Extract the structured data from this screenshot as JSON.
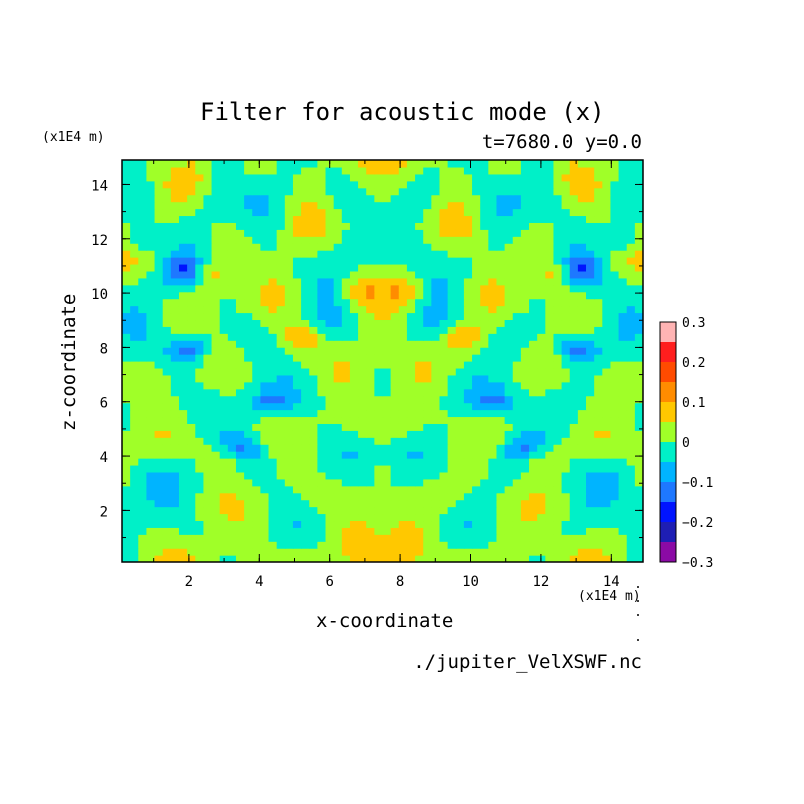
{
  "chart_data": {
    "type": "heatmap",
    "title": "Filter for acoustic mode (x)",
    "subtitle": "t=7680.0 y=0.0",
    "xlabel": "x-coordinate",
    "ylabel": "z-coordinate",
    "x_unit": "(x1E4 m)",
    "y_unit": "(x1E4 m)",
    "xlim": [
      0.1,
      14.9
    ],
    "ylim": [
      0.1,
      14.9
    ],
    "x_ticks": [
      "2",
      "4",
      "6",
      "8",
      "10",
      "12",
      "14"
    ],
    "x_tick_values": [
      2,
      4,
      6,
      8,
      10,
      12,
      14
    ],
    "y_ticks": [
      "2",
      "4",
      "6",
      "8",
      "10",
      "12",
      "14"
    ],
    "y_tick_values": [
      2,
      4,
      6,
      8,
      10,
      12,
      14
    ],
    "colorbar": {
      "levels": [
        -0.3,
        -0.25,
        -0.2,
        -0.15,
        -0.1,
        -0.05,
        0,
        0.05,
        0.1,
        0.15,
        0.2,
        0.25,
        0.3
      ],
      "tick_labels": [
        "0.3",
        "0.2",
        "0.1",
        "0",
        "−0.1",
        "−0.2",
        "−0.3"
      ],
      "tick_values": [
        0.3,
        0.2,
        0.1,
        0,
        -0.1,
        -0.2,
        -0.3
      ],
      "colors": [
        "#8b0aa5",
        "#1e1eb4",
        "#0014ff",
        "#1e78ff",
        "#00b4ff",
        "#00f0c8",
        "#a0ff28",
        "#ffc800",
        "#ff8c00",
        "#ff4b00",
        "#ff1e1e",
        "#ffb4b4"
      ]
    },
    "grid": false
  },
  "source_file": "./jupiter_VelXSWF.nc"
}
